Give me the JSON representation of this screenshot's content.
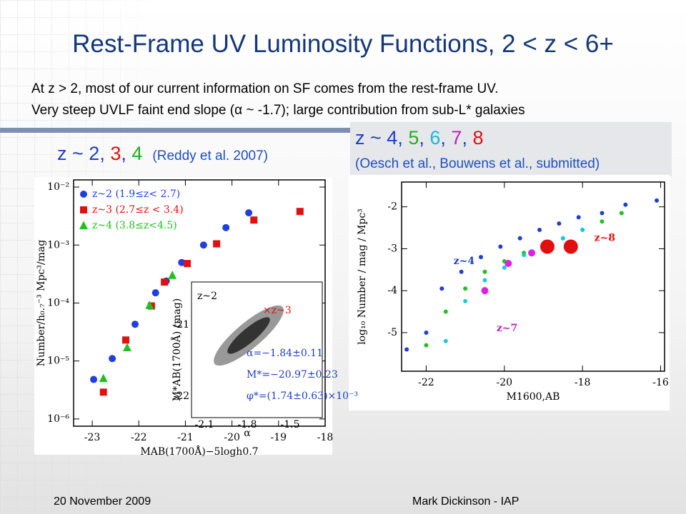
{
  "title": "Rest-Frame UV Luminosity Functions, 2 < z < 6+",
  "bullets": [
    "At z > 2, most of our current information on SF comes from the rest-frame UV.",
    "Very steep UVLF faint end slope (α ~ -1.7); large contribution from sub-L* galaxies"
  ],
  "left_heading": {
    "parts": [
      {
        "text": "z ~ ",
        "color": "#1f3fbf"
      },
      {
        "text": "2",
        "color": "#1f3fbf"
      },
      {
        "text": ", ",
        "color": "#1f3fbf"
      },
      {
        "text": "3",
        "color": "#e01010"
      },
      {
        "text": ", ",
        "color": "#1f3fbf"
      },
      {
        "text": "4",
        "color": "#20b020"
      }
    ],
    "citation": "(Reddy et al. 2007)"
  },
  "right_heading": {
    "parts": [
      {
        "text": "z ~ ",
        "color": "#1f3fbf"
      },
      {
        "text": "4",
        "color": "#1f3fbf"
      },
      {
        "text": ", ",
        "color": "#1f3fbf"
      },
      {
        "text": "5",
        "color": "#20b020"
      },
      {
        "text": ", ",
        "color": "#1f3fbf"
      },
      {
        "text": "6",
        "color": "#18b8d8"
      },
      {
        "text": ", ",
        "color": "#1f3fbf"
      },
      {
        "text": "7",
        "color": "#c020c0"
      },
      {
        "text": ", ",
        "color": "#1f3fbf"
      },
      {
        "text": "8",
        "color": "#e01010"
      }
    ],
    "citation": "(Oesch et al., Bouwens et al., submitted)"
  },
  "footer": [
    "20 November 2009",
    "Mark Dickinson - IAP"
  ],
  "chart_data": [
    {
      "type": "scatter",
      "x_label": "MAB(1700Å)−5logh0.7",
      "y_label": "Number/h₀.₇⁻³ Mpc³/mag",
      "xlim": [
        -23.4,
        -18
      ],
      "xticks": [
        -23,
        -22,
        -21,
        -20,
        -19,
        -18
      ],
      "ylim": [
        7.5e-07,
        0.0133
      ],
      "y_log": true,
      "yticks": [
        {
          "value": 1e-06,
          "label": "10⁻⁶"
        },
        {
          "value": 1e-05,
          "label": "10⁻⁵"
        },
        {
          "value": 0.0001,
          "label": "10⁻⁴"
        },
        {
          "value": 0.001,
          "label": "10⁻³"
        },
        {
          "value": 0.01,
          "label": "10⁻²"
        }
      ],
      "legend": "upper left",
      "series": [
        {
          "name": "z~2 (1.9≤z< 2.7)",
          "color": "#1f3fdf",
          "marker": "circle",
          "x": [
            -22.97,
            -22.57,
            -22.08,
            -21.64,
            -21.41,
            -21.08,
            -20.61,
            -20.13,
            -19.64
          ],
          "values": [
            4.8e-06,
            1.1e-05,
            4.3e-05,
            0.00015,
            0.00024,
            0.0005,
            0.001,
            0.002,
            0.0036
          ]
        },
        {
          "name": "z~3 (2.7≤z < 3.4)",
          "color": "#e01010",
          "marker": "square",
          "x": [
            -22.76,
            -22.28,
            -21.73,
            -21.45,
            -20.96,
            -20.33,
            -19.53,
            -18.54
          ],
          "values": [
            2.9e-06,
            2.3e-05,
            8.9e-05,
            0.00023,
            0.00048,
            0.00105,
            0.0027,
            0.0038
          ]
        },
        {
          "name": "z~4 (3.8≤z<4.5)",
          "color": "#20c020",
          "marker": "triangle",
          "x": [
            -22.76,
            -22.25,
            -21.77,
            -21.28
          ],
          "values": [
            5e-06,
            1.7e-05,
            9.1e-05,
            0.0003
          ]
        }
      ],
      "inset": {
        "texts": [
          "z~2",
          "×z~3",
          "α=−1.84±0.11",
          "M*=−20.97±0.23",
          "φ*=(1.74±0.63)×10⁻³"
        ],
        "x_label": "α",
        "y_label": "M*AB(1700Å) (mag)",
        "xticks": [
          "-2.1",
          "-1.8",
          "-1.5"
        ],
        "yticks": [
          "-21",
          "-22"
        ]
      }
    },
    {
      "type": "scatter",
      "x_label": "M1600,AB",
      "y_label": "log₁₀ Number / mag / Mpc³",
      "xlim": [
        -22.63,
        -15.9
      ],
      "xticks": [
        -22,
        -20,
        -18,
        -16
      ],
      "ylim": [
        -5.92,
        -1.41
      ],
      "yticks": [
        -2,
        -3,
        -4,
        -5
      ],
      "annotations": [
        {
          "text": "z~4",
          "x": -21.3,
          "y": -3.3,
          "color": "#1f3fbf"
        },
        {
          "text": "z~7",
          "x": -20.2,
          "y": -4.9,
          "color": "#c020c0"
        },
        {
          "text": "z~8",
          "x": -17.7,
          "y": -2.75,
          "color": "#e01010"
        }
      ],
      "series": [
        {
          "color": "#1f3fcf",
          "size": 3,
          "x": [
            -22.5,
            -22.0,
            -21.6,
            -21.1,
            -20.6,
            -20.1,
            -19.6,
            -19.1,
            -18.6,
            -18.1,
            -17.5,
            -16.9,
            -16.1
          ],
          "values": [
            -5.4,
            -5.0,
            -3.95,
            -3.55,
            -3.2,
            -2.95,
            -2.75,
            -2.55,
            -2.4,
            -2.25,
            -2.15,
            -1.95,
            -1.85
          ]
        },
        {
          "color": "#20c020",
          "size": 3,
          "x": [
            -22.0,
            -21.5,
            -21.0,
            -20.5,
            -20.0,
            -19.5,
            -19.0,
            -18.5,
            -18.0,
            -17.5,
            -17.0
          ],
          "values": [
            -5.3,
            -4.5,
            -3.95,
            -3.55,
            -3.3,
            -3.1,
            -2.9,
            -2.75,
            -2.55,
            -2.35,
            -2.15
          ]
        },
        {
          "color": "#18c8e0",
          "size": 3,
          "x": [
            -21.5,
            -21.0,
            -20.5,
            -20.0,
            -19.5,
            -19.0,
            -18.5,
            -18.0
          ],
          "values": [
            -5.2,
            -4.25,
            -3.75,
            -3.45,
            -3.15,
            -2.95,
            -2.75,
            -2.55
          ]
        },
        {
          "color": "#e020e0",
          "size": 5,
          "x": [
            -20.5,
            -19.9,
            -19.3
          ],
          "values": [
            -4.0,
            -3.35,
            -3.1
          ]
        },
        {
          "color": "#e01010",
          "size": 10,
          "x": [
            -18.9,
            -18.3
          ],
          "values": [
            -2.95,
            -2.95
          ]
        }
      ]
    }
  ]
}
